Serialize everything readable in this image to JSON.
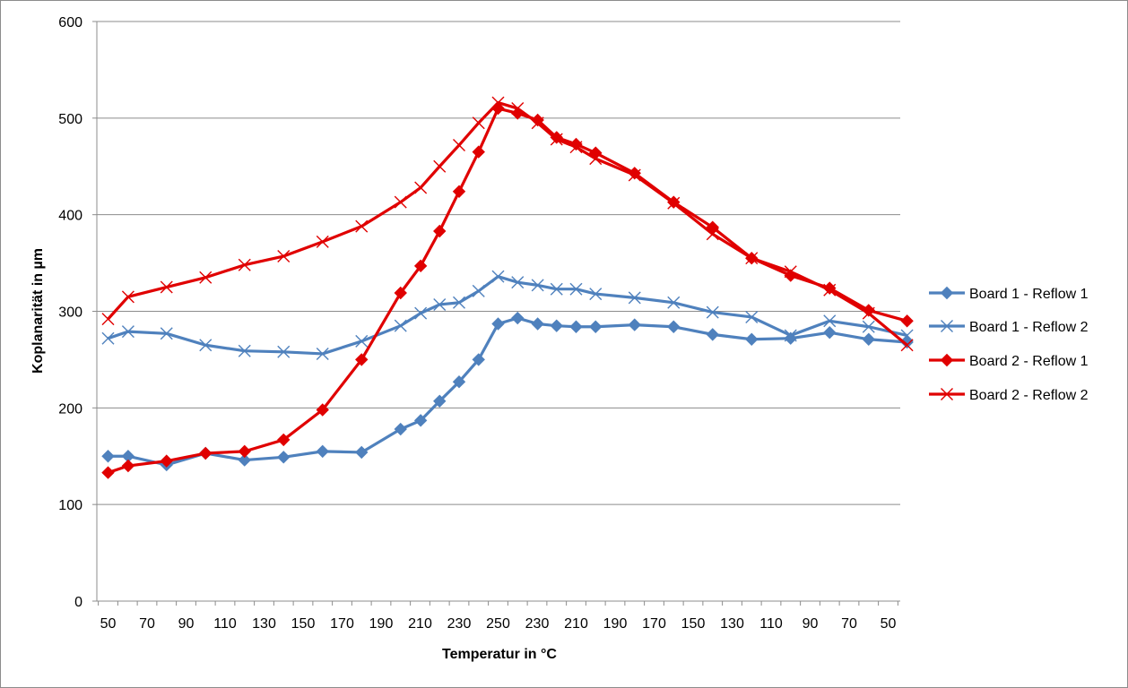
{
  "chart_data": {
    "type": "line",
    "title": "",
    "xlabel": "Temperatur in °C",
    "ylabel": "Koplanarität in µm",
    "ylim": [
      0,
      600
    ],
    "yticks": [
      0,
      100,
      200,
      300,
      400,
      500,
      600
    ],
    "grid": true,
    "legend_position": "right",
    "x_positions": [
      0,
      1.03,
      3.0,
      5.0,
      7.0,
      9.0,
      11.0,
      13.0,
      15.0,
      16.03,
      17.0,
      18.0,
      19.0,
      20.0,
      21.0,
      22.03,
      23.0,
      24.0,
      25.0,
      27.0,
      29.0,
      31.0,
      33.0,
      35.0,
      37.0,
      39.0,
      40.97
    ],
    "x_tick_positions": [
      0,
      2,
      4,
      6,
      8,
      10,
      12,
      14,
      16,
      18,
      20,
      22,
      24,
      26,
      28,
      30,
      32,
      34,
      36,
      38,
      40
    ],
    "x_tick_labels": [
      "50",
      "70",
      "90",
      "110",
      "130",
      "150",
      "170",
      "190",
      "210",
      "230",
      "250",
      "230",
      "210",
      "190",
      "170",
      "150",
      "130",
      "110",
      "90",
      "70",
      "50"
    ],
    "series": [
      {
        "name": "Board 1 - Reflow 1",
        "color": "#4f81bd",
        "marker": "diamond",
        "values": [
          150,
          150,
          141,
          153,
          146,
          149,
          155,
          154,
          178,
          187,
          207,
          227,
          250,
          287,
          293,
          287,
          285,
          284,
          284,
          286,
          284,
          276,
          271,
          272,
          278,
          271,
          268
        ]
      },
      {
        "name": "Board 1 - Reflow 2",
        "color": "#4f81bd",
        "marker": "x",
        "values": [
          272,
          279,
          277,
          265,
          259,
          258,
          256,
          269,
          285,
          298,
          307,
          309,
          321,
          336,
          330,
          327,
          323,
          323,
          318,
          314,
          309,
          299,
          294,
          275,
          290,
          284,
          275
        ]
      },
      {
        "name": "Board 2 - Reflow 1",
        "color": "#e00000",
        "marker": "diamond",
        "values": [
          133,
          140,
          145,
          153,
          155,
          167,
          198,
          250,
          319,
          347,
          383,
          424,
          465,
          510,
          505,
          498,
          480,
          473,
          464,
          443,
          413,
          387,
          355,
          337,
          324,
          301,
          290
        ]
      },
      {
        "name": "Board 2 - Reflow 2",
        "color": "#e00000",
        "marker": "x",
        "values": [
          292,
          315,
          325,
          335,
          348,
          357,
          372,
          388,
          413,
          428,
          450,
          472,
          495,
          516,
          510,
          495,
          478,
          470,
          458,
          441,
          412,
          380,
          355,
          341,
          322,
          298,
          265
        ]
      }
    ]
  }
}
